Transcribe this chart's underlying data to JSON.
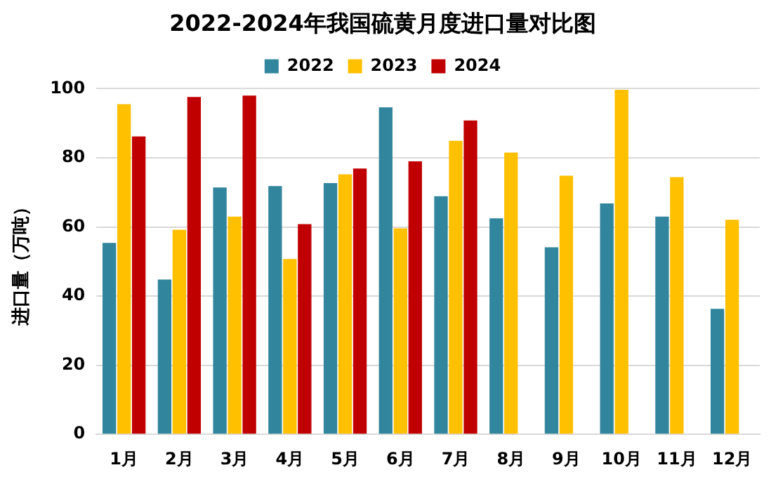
{
  "chart_data": {
    "type": "bar",
    "title": "2022-2024年我国硫黄月度进口量对比图",
    "ylabel": "进口量（万吨）",
    "categories": [
      "1月",
      "2月",
      "3月",
      "4月",
      "5月",
      "6月",
      "7月",
      "8月",
      "9月",
      "10月",
      "11月",
      "12月"
    ],
    "series": [
      {
        "name": "2022",
        "color": "#31859c",
        "values": [
          55.4,
          44.8,
          71.4,
          71.8,
          72.7,
          94.6,
          68.9,
          62.5,
          54.1,
          66.8,
          63.0,
          36.3
        ]
      },
      {
        "name": "2023",
        "color": "#ffc000",
        "values": [
          95.5,
          59.2,
          63.0,
          50.7,
          75.2,
          59.6,
          84.9,
          81.5,
          74.8,
          99.7,
          74.4,
          62.1
        ]
      },
      {
        "name": "2024",
        "color": "#c00000",
        "values": [
          86.2,
          97.6,
          98.0,
          60.8,
          76.9,
          79.0,
          90.8,
          null,
          null,
          null,
          null,
          null
        ]
      }
    ],
    "ylim": [
      0,
      100
    ],
    "yticks": [
      0,
      20,
      40,
      60,
      80,
      100
    ],
    "grid": "y",
    "legend": "top"
  }
}
